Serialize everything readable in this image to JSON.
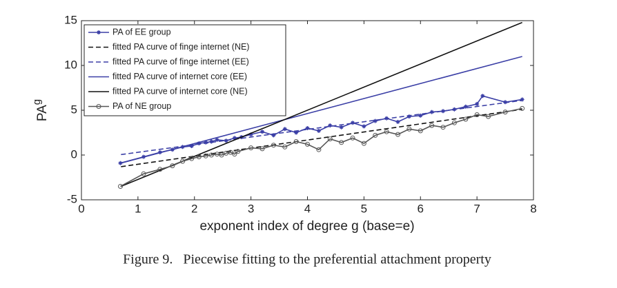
{
  "chart_data": {
    "type": "line",
    "xlabel": "exponent index of degree g (base=e)",
    "ylabel": {
      "text": "PA",
      "subscript": "g"
    },
    "caption": "Figure 9.   Piecewise fitting to the preferential attachment property",
    "xlim": [
      0,
      8
    ],
    "xticks": [
      0,
      1,
      2,
      3,
      4,
      5,
      6,
      7,
      8
    ],
    "ylim": [
      -5,
      15
    ],
    "yticks": [
      -5,
      0,
      5,
      10,
      15
    ],
    "legend": "upper-left",
    "series": [
      {
        "name": "PA of EE group",
        "color": "#3b3fa6",
        "dash": false,
        "marker": "star",
        "x": [
          0.69,
          1.1,
          1.39,
          1.61,
          1.79,
          1.95,
          2.08,
          2.2,
          2.3,
          2.4,
          2.56,
          2.71,
          2.83,
          3.0,
          3.2,
          3.4,
          3.6,
          3.8,
          4.0,
          4.2,
          4.4,
          4.6,
          4.8,
          5.0,
          5.2,
          5.4,
          5.6,
          5.8,
          6.0,
          6.2,
          6.4,
          6.6,
          6.8,
          7.0,
          7.1,
          7.5,
          7.8
        ],
        "values": [
          -0.9,
          -0.2,
          0.3,
          0.6,
          0.9,
          1.0,
          1.3,
          1.4,
          1.5,
          1.7,
          1.6,
          1.9,
          2.0,
          2.3,
          2.6,
          2.2,
          2.9,
          2.5,
          3.0,
          2.7,
          3.3,
          3.1,
          3.6,
          3.2,
          3.8,
          4.1,
          3.7,
          4.3,
          4.4,
          4.8,
          4.9,
          5.1,
          5.4,
          5.7,
          6.6,
          5.9,
          6.2
        ]
      },
      {
        "name": "fitted PA curve of finge internet (NE)",
        "color": "#111111",
        "dash": true,
        "marker": null,
        "x": [
          0.7,
          7.8
        ],
        "values": [
          -1.3,
          5.1
        ]
      },
      {
        "name": "fitted PA curve of finge internet (EE)",
        "color": "#3b3fa6",
        "dash": true,
        "marker": null,
        "x": [
          0.7,
          7.8
        ],
        "values": [
          0.05,
          6.1
        ]
      },
      {
        "name": "fitted PA curve of internet core (EE)",
        "color": "#3b3fa6",
        "dash": false,
        "marker": null,
        "x": [
          0.7,
          7.8
        ],
        "values": [
          -0.9,
          11.0
        ]
      },
      {
        "name": "fitted PA curve of internet core (NE)",
        "color": "#111111",
        "dash": false,
        "marker": null,
        "x": [
          0.7,
          7.8
        ],
        "values": [
          -3.5,
          14.8
        ]
      },
      {
        "name": "PA of NE group",
        "color": "#555555",
        "dash": false,
        "marker": "circle",
        "x": [
          0.69,
          1.1,
          1.39,
          1.61,
          1.79,
          1.95,
          2.08,
          2.2,
          2.3,
          2.4,
          2.48,
          2.56,
          2.64,
          2.71,
          2.77,
          3.0,
          3.2,
          3.4,
          3.6,
          3.8,
          4.0,
          4.2,
          4.4,
          4.6,
          4.8,
          5.0,
          5.2,
          5.4,
          5.6,
          5.8,
          6.0,
          6.2,
          6.4,
          6.6,
          6.8,
          7.0,
          7.2,
          7.5,
          7.8
        ],
        "values": [
          -3.5,
          -2.1,
          -1.6,
          -1.2,
          -0.7,
          -0.4,
          -0.2,
          -0.1,
          0.0,
          0.1,
          0.0,
          0.2,
          0.3,
          0.1,
          0.4,
          0.8,
          0.7,
          1.1,
          0.9,
          1.5,
          1.2,
          0.6,
          1.8,
          1.4,
          1.9,
          1.3,
          2.2,
          2.6,
          2.3,
          2.9,
          2.7,
          3.3,
          3.1,
          3.6,
          4.0,
          4.5,
          4.3,
          4.8,
          5.2
        ]
      }
    ]
  }
}
